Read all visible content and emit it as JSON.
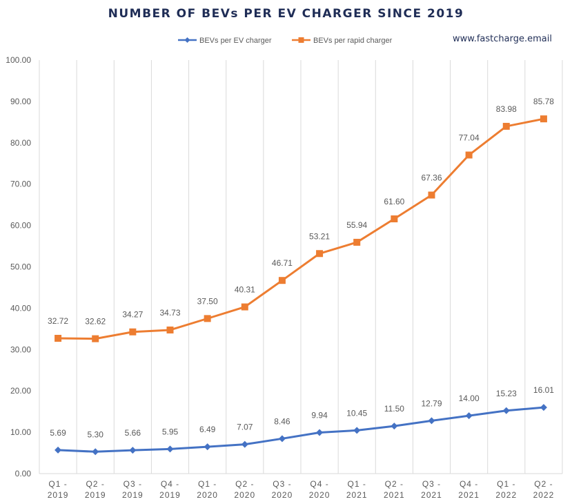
{
  "chart_data": {
    "type": "line",
    "title": "NUMBER OF BEVs PER EV CHARGER SINCE 2019",
    "source_text": "www.fastcharge.email",
    "categories": [
      [
        "Q1 -",
        "2019"
      ],
      [
        "Q2 -",
        "2019"
      ],
      [
        "Q3 -",
        "2019"
      ],
      [
        "Q4 -",
        "2019"
      ],
      [
        "Q1 -",
        "2020"
      ],
      [
        "Q2 -",
        "2020"
      ],
      [
        "Q3 -",
        "2020"
      ],
      [
        "Q4 -",
        "2020"
      ],
      [
        "Q1 -",
        "2021"
      ],
      [
        "Q2 -",
        "2021"
      ],
      [
        "Q3 -",
        "2021"
      ],
      [
        "Q4 -",
        "2021"
      ],
      [
        "Q1 -",
        "2022"
      ],
      [
        "Q2 -",
        "2022"
      ]
    ],
    "ylim": [
      0,
      100
    ],
    "yticks": [
      "0.00",
      "10.00",
      "20.00",
      "30.00",
      "40.00",
      "50.00",
      "60.00",
      "70.00",
      "80.00",
      "90.00",
      "100.00"
    ],
    "grid": "vertical",
    "legend_position": "top",
    "series": [
      {
        "name": "BEVs per EV charger",
        "color": "#4472c4",
        "marker": "diamond",
        "values": [
          5.69,
          5.3,
          5.66,
          5.95,
          6.49,
          7.07,
          8.46,
          9.94,
          10.45,
          11.5,
          12.79,
          14.0,
          15.23,
          16.01
        ],
        "labels": [
          "5.69",
          "5.30",
          "5.66",
          "5.95",
          "6.49",
          "7.07",
          "8.46",
          "9.94",
          "10.45",
          "11.50",
          "12.79",
          "14.00",
          "15.23",
          "16.01"
        ]
      },
      {
        "name": "BEVs per rapid charger",
        "color": "#ed7d31",
        "marker": "square",
        "values": [
          32.72,
          32.62,
          34.27,
          34.73,
          37.5,
          40.31,
          46.71,
          53.21,
          55.94,
          61.6,
          67.36,
          77.04,
          83.98,
          85.78
        ],
        "labels": [
          "32.72",
          "32.62",
          "34.27",
          "34.73",
          "37.50",
          "40.31",
          "46.71",
          "53.21",
          "55.94",
          "61.60",
          "67.36",
          "77.04",
          "83.98",
          "85.78"
        ]
      }
    ]
  }
}
